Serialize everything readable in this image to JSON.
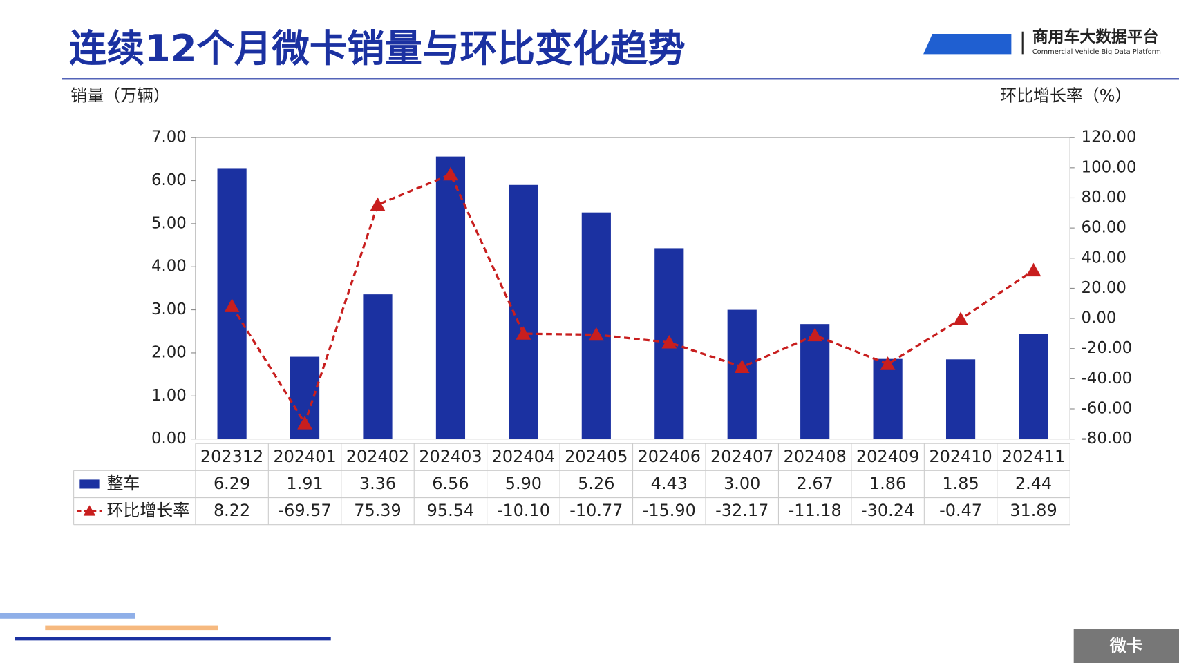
{
  "chart_data": {
    "type": "bar",
    "title": "连续12个月微卡销量与环比变化趋势",
    "y_label": "销量（万辆）",
    "y2_label": "环比增长率（%）",
    "categories": [
      "202312",
      "202401",
      "202402",
      "202403",
      "202404",
      "202405",
      "202406",
      "202407",
      "202408",
      "202409",
      "202410",
      "202411"
    ],
    "series": [
      {
        "name": "整车",
        "type": "bar",
        "color": "#1b31a1",
        "values": [
          6.29,
          1.91,
          3.36,
          6.56,
          5.9,
          5.26,
          4.43,
          3.0,
          2.67,
          1.86,
          1.85,
          2.44
        ],
        "value_labels": [
          "6.29",
          "1.91",
          "3.36",
          "6.56",
          "5.90",
          "5.26",
          "4.43",
          "3.00",
          "2.67",
          "1.86",
          "1.85",
          "2.44"
        ]
      },
      {
        "name": "环比增长率",
        "type": "line",
        "axis": "y2",
        "color": "#c81e1e",
        "values": [
          8.22,
          -69.57,
          75.39,
          95.54,
          -10.1,
          -10.77,
          -15.9,
          -32.17,
          -11.18,
          -30.24,
          -0.47,
          31.89
        ],
        "value_labels": [
          "8.22",
          "-69.57",
          "75.39",
          "95.54",
          "-10.10",
          "-10.77",
          "-15.90",
          "-32.17",
          "-11.18",
          "-30.24",
          "-0.47",
          "31.89"
        ]
      }
    ],
    "ylim": [
      0,
      7
    ],
    "yticks": [
      {
        "value": 0,
        "label": "0.00"
      },
      {
        "value": 1,
        "label": "1.00"
      },
      {
        "value": 2,
        "label": "2.00"
      },
      {
        "value": 3,
        "label": "3.00"
      },
      {
        "value": 4,
        "label": "4.00"
      },
      {
        "value": 5,
        "label": "5.00"
      },
      {
        "value": 6,
        "label": "6.00"
      },
      {
        "value": 7,
        "label": "7.00"
      }
    ],
    "y2lim": [
      -80,
      120
    ],
    "y2ticks": [
      {
        "value": -80,
        "label": "-80.00"
      },
      {
        "value": -60,
        "label": "-60.00"
      },
      {
        "value": -40,
        "label": "-40.00"
      },
      {
        "value": -20,
        "label": "-20.00"
      },
      {
        "value": 0,
        "label": "0.00"
      },
      {
        "value": 20,
        "label": "20.00"
      },
      {
        "value": 40,
        "label": "40.00"
      },
      {
        "value": 60,
        "label": "60.00"
      },
      {
        "value": 80,
        "label": "80.00"
      },
      {
        "value": 100,
        "label": "100.00"
      },
      {
        "value": 120,
        "label": "120.00"
      }
    ]
  },
  "logo": {
    "name": "商用车大数据平台",
    "subtitle": "Commercial Vehicle Big Data Platform"
  },
  "tab": "微卡"
}
